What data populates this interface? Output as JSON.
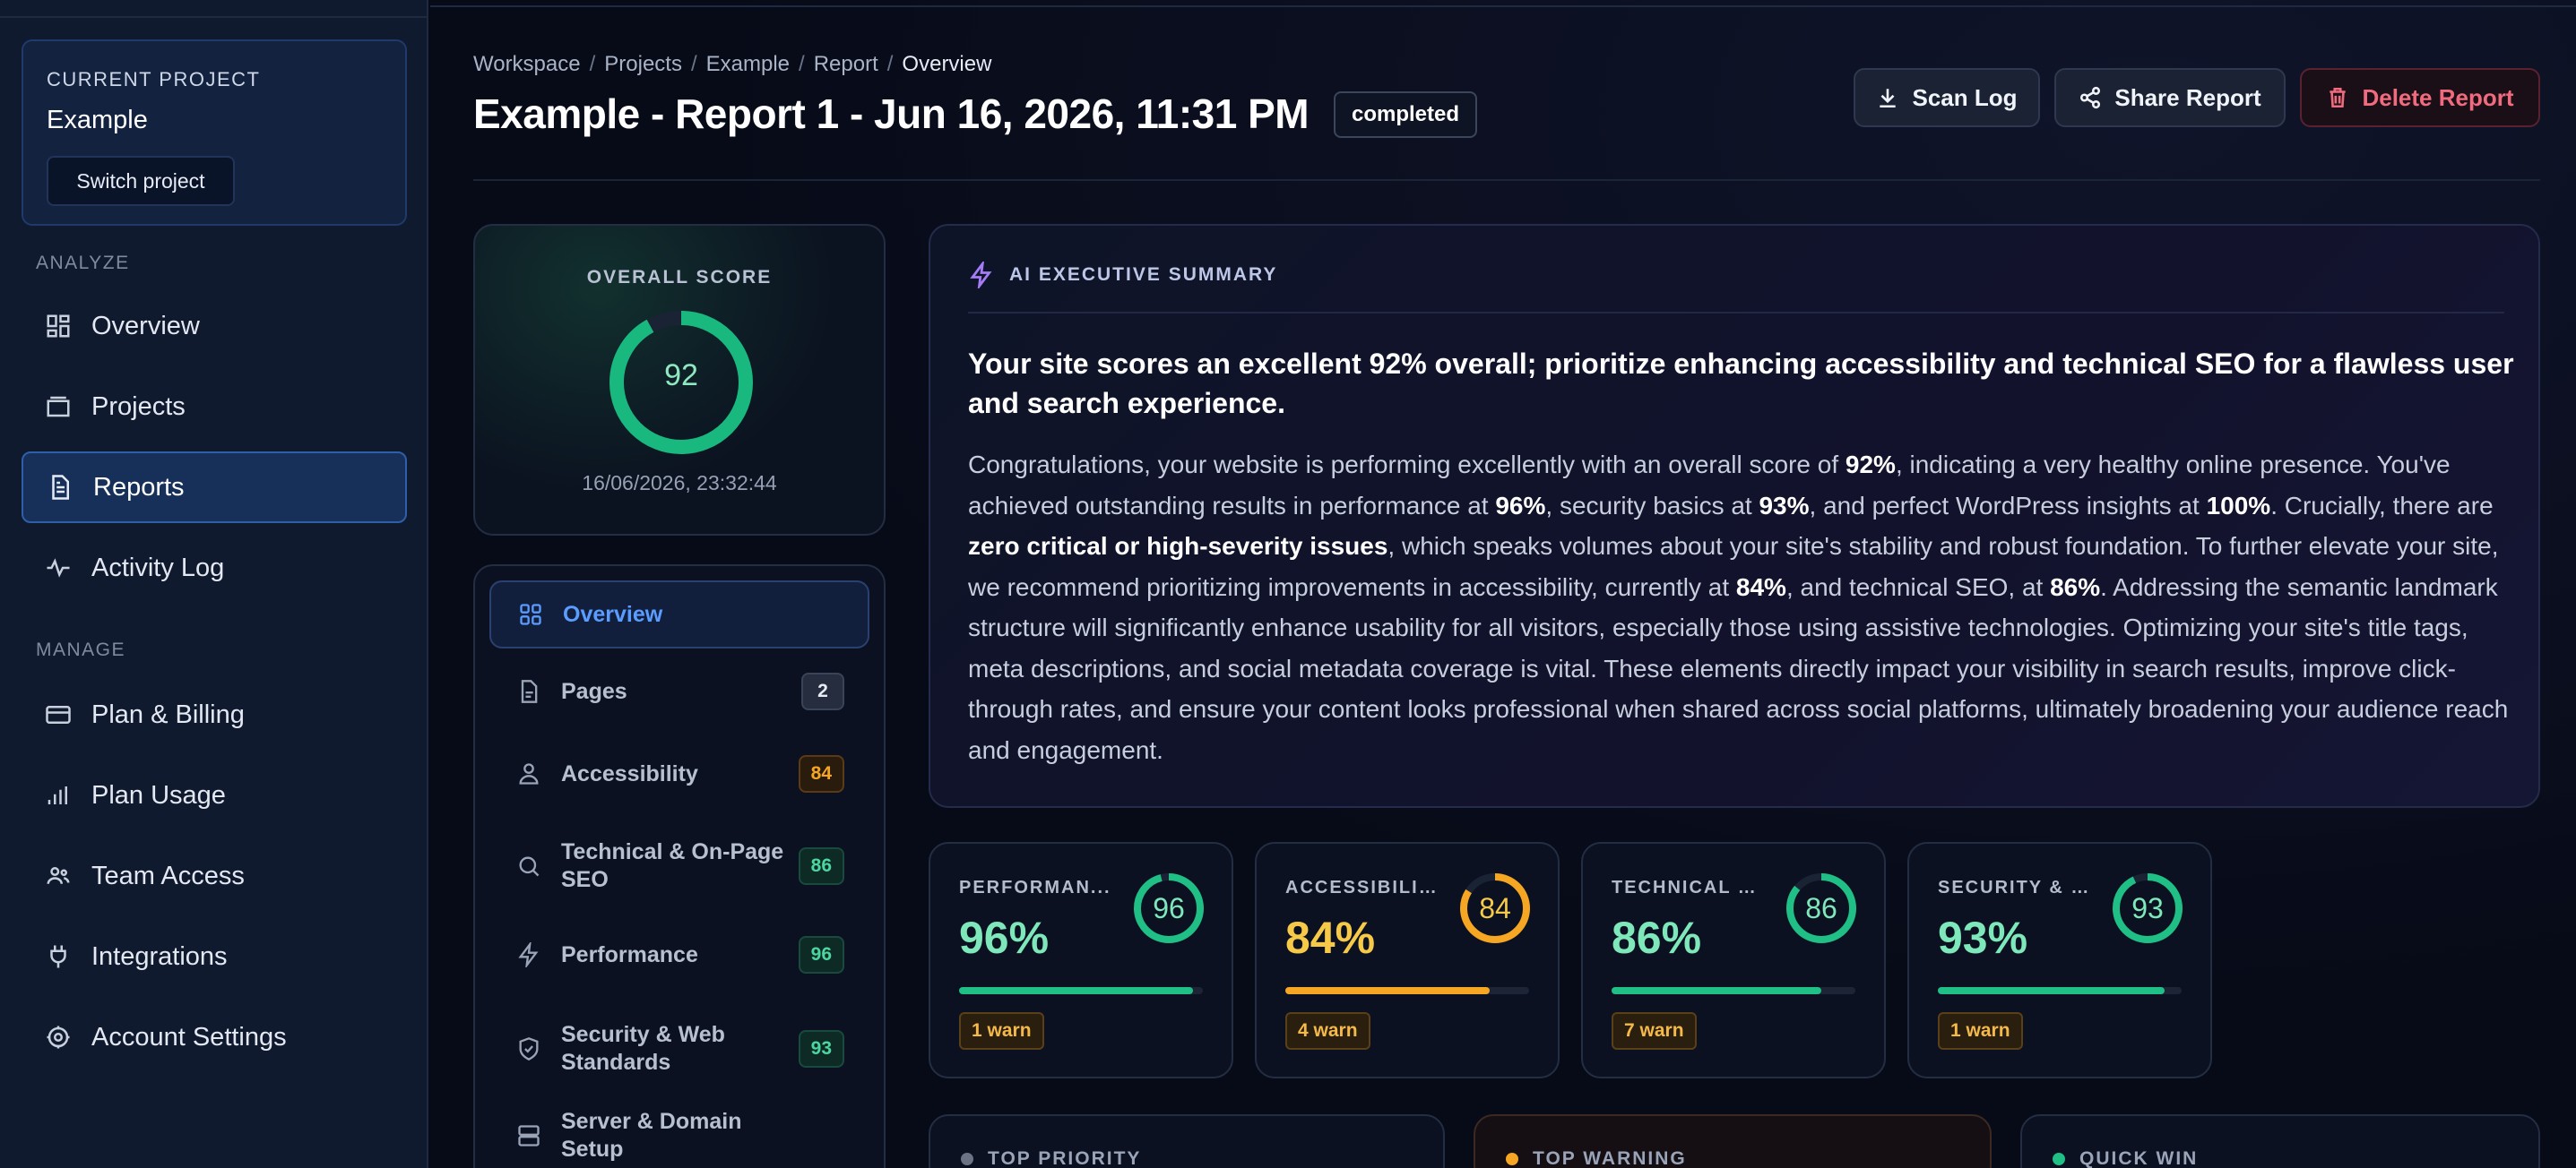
{
  "sidebar": {
    "project": {
      "eyebrow": "CURRENT PROJECT",
      "name": "Example",
      "switch_label": "Switch project"
    },
    "sections": [
      {
        "label": "ANALYZE"
      },
      {
        "label": "MANAGE"
      }
    ],
    "items": [
      {
        "label": "Overview",
        "icon": "grid-icon"
      },
      {
        "label": "Projects",
        "icon": "folder-icon"
      },
      {
        "label": "Reports",
        "icon": "document-icon",
        "active": true
      },
      {
        "label": "Activity Log",
        "icon": "pulse-icon"
      },
      {
        "label": "Plan & Billing",
        "icon": "credit-card-icon"
      },
      {
        "label": "Plan Usage",
        "icon": "bar-chart-icon"
      },
      {
        "label": "Team Access",
        "icon": "users-icon"
      },
      {
        "label": "Integrations",
        "icon": "plug-icon"
      },
      {
        "label": "Account Settings",
        "icon": "gear-icon"
      }
    ]
  },
  "header": {
    "breadcrumb": [
      "Workspace",
      "Projects",
      "Example",
      "Report",
      "Overview"
    ],
    "title": "Example - Report 1 - Jun 16, 2026, 11:31 PM",
    "status": "completed",
    "buttons": {
      "scan_log": "Scan Log",
      "share": "Share Report",
      "delete": "Delete Report"
    }
  },
  "score": {
    "label": "OVERALL SCORE",
    "value": 92,
    "date": "16/06/2026, 23:32:44",
    "color": "#19b87e"
  },
  "report_nav": [
    {
      "label": "Overview",
      "icon": "grid-icon",
      "active": true
    },
    {
      "label": "Pages",
      "icon": "page-icon",
      "badge": "2"
    },
    {
      "label": "Accessibility",
      "icon": "person-icon",
      "badge": "84"
    },
    {
      "label": "Technical & On-Page SEO",
      "icon": "search-icon",
      "badge": "86"
    },
    {
      "label": "Performance",
      "icon": "bolt-icon",
      "badge": "96"
    },
    {
      "label": "Security & Web Standards",
      "icon": "shield-icon",
      "badge": "93"
    },
    {
      "label": "Server & Domain Setup",
      "icon": "server-icon"
    }
  ],
  "ai_summary": {
    "label": "AI EXECUTIVE SUMMARY",
    "headline": "Your site scores an excellent 92% overall; prioritize enhancing accessibility and technical SEO for a flawless user and search experience.",
    "body": [
      "Congratulations, your website is performing excellently with an overall score of ",
      "92%",
      ", indicating a very healthy online presence. You've achieved outstanding results in performance at ",
      "96%",
      ", security basics at ",
      "93%",
      ", and perfect WordPress insights at ",
      "100%",
      ". Crucially, there are ",
      "zero critical or high-severity issues",
      ", which speaks volumes about your site's stability and robust foundation. To further elevate your site, we recommend prioritizing improvements in accessibility, currently at ",
      "84%",
      ", and technical SEO, at ",
      "86%",
      ". Addressing the semantic landmark structure will significantly enhance usability for all visitors, especially those using assistive technologies. Optimizing your site's title tags, meta descriptions, and social metadata coverage is vital. These elements directly impact your visibility in search results, improve click-through rates, and ensure your content looks professional when shared across social platforms, ultimately broadening your audience reach and engagement."
    ]
  },
  "metrics": [
    {
      "label": "PERFORMAN...",
      "value": 96,
      "display": "96%",
      "warn": "1 warn",
      "color": "#1fbf86",
      "text_color": "#7ee8bb"
    },
    {
      "label": "ACCESSIBILIT...",
      "value": 84,
      "display": "84%",
      "warn": "4 warn",
      "color": "#f5a623",
      "text_color": "#f7c948"
    },
    {
      "label": "TECHNICAL &...",
      "value": 86,
      "display": "86%",
      "warn": "7 warn",
      "color": "#1fbf86",
      "text_color": "#7ee8bb"
    },
    {
      "label": "SECURITY & ...",
      "value": 93,
      "display": "93%",
      "warn": "1 warn",
      "color": "#1fbf86",
      "text_color": "#7ee8bb"
    }
  ],
  "bottom_cards": [
    {
      "label": "TOP PRIORITY",
      "dot": "#6b7385"
    },
    {
      "label": "TOP WARNING",
      "dot": "#f5a623"
    },
    {
      "label": "QUICK WIN",
      "dot": "#1fbf86"
    }
  ]
}
